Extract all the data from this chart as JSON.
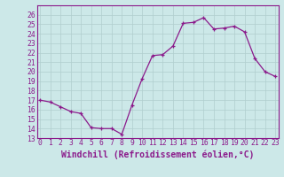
{
  "x": [
    0,
    1,
    2,
    3,
    4,
    5,
    6,
    7,
    8,
    9,
    10,
    11,
    12,
    13,
    14,
    15,
    16,
    17,
    18,
    19,
    20,
    21,
    22,
    23
  ],
  "y": [
    17.0,
    16.8,
    16.3,
    15.8,
    15.6,
    14.1,
    14.0,
    14.0,
    13.4,
    16.5,
    19.3,
    21.7,
    21.8,
    22.7,
    25.1,
    25.2,
    25.7,
    24.5,
    24.6,
    24.8,
    24.2,
    21.4,
    20.0,
    19.5
  ],
  "line_color": "#8B1A8B",
  "marker": "+",
  "marker_color": "#8B1A8B",
  "bg_color": "#cce8e8",
  "grid_color": "#b0cece",
  "xlabel": "Windchill (Refroidissement éolien,°C)",
  "xlim": [
    -0.3,
    23.3
  ],
  "ylim": [
    13,
    27
  ],
  "yticks": [
    13,
    14,
    15,
    16,
    17,
    18,
    19,
    20,
    21,
    22,
    23,
    24,
    25,
    26
  ],
  "xticks": [
    0,
    1,
    2,
    3,
    4,
    5,
    6,
    7,
    8,
    9,
    10,
    11,
    12,
    13,
    14,
    15,
    16,
    17,
    18,
    19,
    20,
    21,
    22,
    23
  ],
  "tick_fontsize": 5.8,
  "xlabel_fontsize": 7.0,
  "spine_color": "#8B1A8B"
}
